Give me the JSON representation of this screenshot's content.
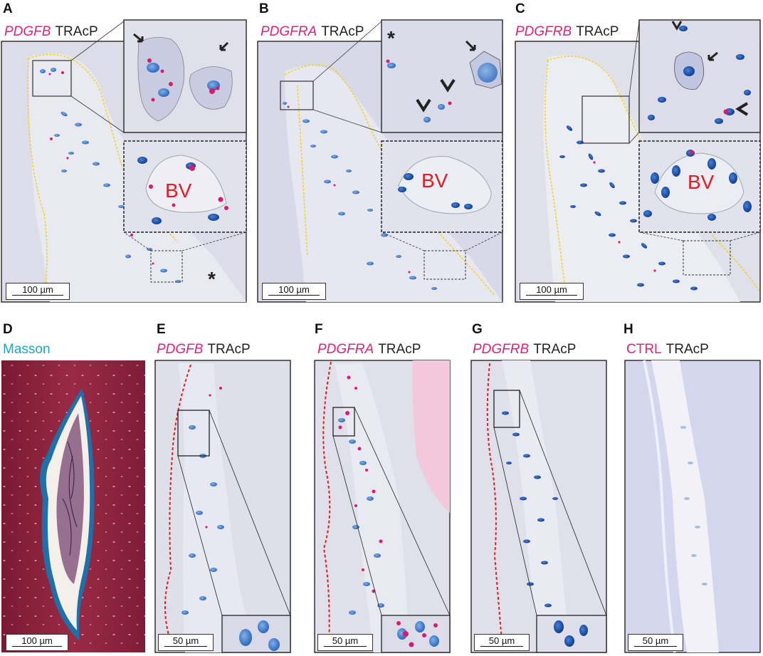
{
  "panels": [
    {
      "id": "A",
      "gene": "PDGFB",
      "stain2": "TRAcP",
      "scale": "100 µm",
      "bv": "BV",
      "asterisk": "*"
    },
    {
      "id": "B",
      "gene": "PDGFRA",
      "stain2": "TRAcP",
      "scale": "100 µm",
      "bv": "BV",
      "asterisk": "*"
    },
    {
      "id": "C",
      "gene": "PDGFRB",
      "stain2": "TRAcP",
      "scale": "100 µm",
      "bv": "BV"
    },
    {
      "id": "D",
      "stain": "Masson",
      "scale": "100 µm"
    },
    {
      "id": "E",
      "gene": "PDGFB",
      "stain2": "TRAcP",
      "scale": "50 µm"
    },
    {
      "id": "F",
      "gene": "PDGFRA",
      "stain2": "TRAcP",
      "scale": "50 µm"
    },
    {
      "id": "G",
      "gene": "PDGFRB",
      "stain2": "TRAcP",
      "scale": "50 µm"
    },
    {
      "id": "H",
      "control": "CTRL",
      "stain2": "TRAcP",
      "scale": "50 µm"
    }
  ],
  "colors": {
    "gene_label": "#e0217a",
    "masson_label": "#1aa7c9",
    "bv_label": "#e11c24",
    "nuclei": "#3f7fd0",
    "signal": "#d81b72",
    "boundary_yellow": "#f2d21a",
    "boundary_red": "#e02020",
    "masson_bone": "#8a1f3a"
  }
}
